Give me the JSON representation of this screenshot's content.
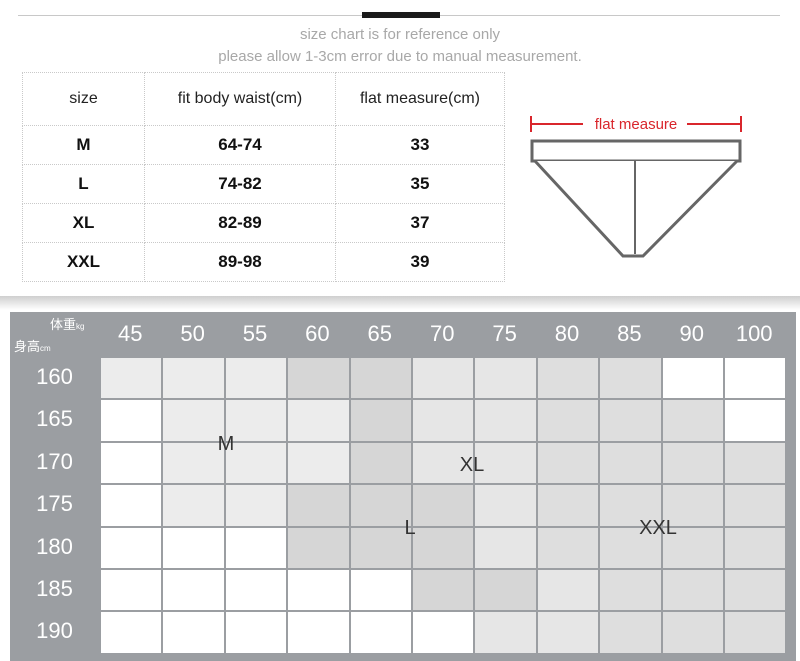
{
  "notes": {
    "line1": "size chart is for reference only",
    "line2": "please allow 1-3cm error due to manual measurement."
  },
  "size_table": {
    "headers": [
      "size",
      "fit body waist(cm)",
      "flat measure(cm)"
    ],
    "rows": [
      {
        "size": "M",
        "waist": "64-74",
        "flat": "33"
      },
      {
        "size": "L",
        "waist": "74-82",
        "flat": "35"
      },
      {
        "size": "XL",
        "waist": "82-89",
        "flat": "37"
      },
      {
        "size": "XXL",
        "waist": "89-98",
        "flat": "39"
      }
    ]
  },
  "diagram": {
    "label": "flat measure",
    "accent": "#d9262c"
  },
  "grid": {
    "corner_weight": "体重",
    "corner_weight_unit": "kg",
    "corner_height": "身高",
    "corner_height_unit": "cm",
    "weights": [
      "45",
      "50",
      "55",
      "60",
      "65",
      "70",
      "75",
      "80",
      "85",
      "90",
      "100"
    ],
    "heights": [
      "160",
      "165",
      "170",
      "175",
      "180",
      "185",
      "190"
    ],
    "zone_labels": {
      "M": "M",
      "L": "L",
      "XL": "XL",
      "XXL": "XXL"
    },
    "colors": {
      "header": "#9b9ea2",
      "white": "#ffffff",
      "M": "#ececec",
      "L": "#d6d6d6",
      "XL": "#e6e6e6",
      "XXL": "#dedede"
    },
    "zones": [
      [
        "M",
        "M",
        "M",
        "L",
        "L",
        "XL",
        "XL",
        "XXL",
        "XXL",
        "white",
        "white"
      ],
      [
        "white",
        "M",
        "M",
        "M",
        "L",
        "XL",
        "XL",
        "XXL",
        "XXL",
        "XXL",
        "white"
      ],
      [
        "white",
        "M",
        "M",
        "M",
        "L",
        "XL",
        "XL",
        "XXL",
        "XXL",
        "XXL",
        "XXL"
      ],
      [
        "white",
        "M",
        "M",
        "L",
        "L",
        "L",
        "XL",
        "XXL",
        "XXL",
        "XXL",
        "XXL"
      ],
      [
        "white",
        "white",
        "white",
        "L",
        "L",
        "L",
        "XL",
        "XXL",
        "XXL",
        "XXL",
        "XXL"
      ],
      [
        "white",
        "white",
        "white",
        "white",
        "white",
        "L",
        "L",
        "XL",
        "XXL",
        "XXL",
        "XXL"
      ],
      [
        "white",
        "white",
        "white",
        "white",
        "white",
        "white",
        "XL",
        "XL",
        "XXL",
        "XXL",
        "XXL"
      ]
    ]
  }
}
